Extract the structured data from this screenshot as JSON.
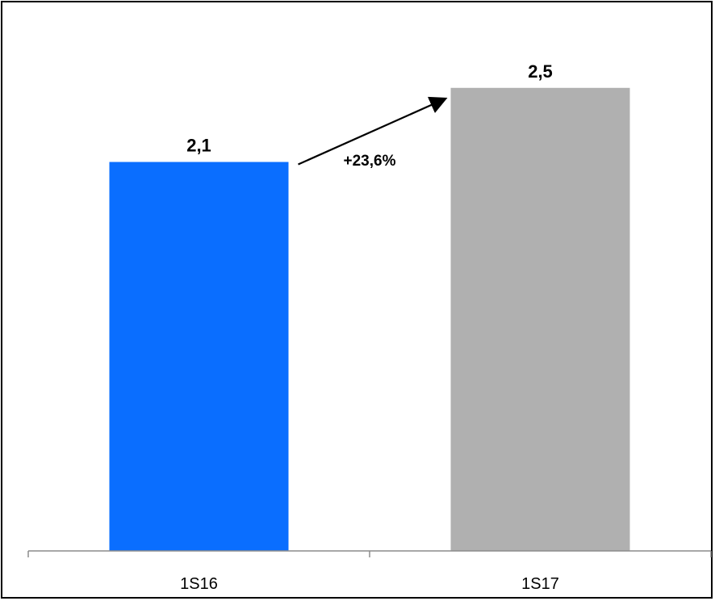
{
  "chart_data": {
    "type": "bar",
    "categories": [
      "1S16",
      "1S17"
    ],
    "values": [
      2.1,
      2.5
    ],
    "value_labels": [
      "2,1",
      "2,5"
    ],
    "colors": [
      "#0A6EFF",
      "#B0B0B0"
    ],
    "ylim": [
      0,
      2.8
    ],
    "grid": false,
    "annotation": {
      "text": "+23,6%",
      "arrow": "from 1S16 to 1S17"
    }
  }
}
